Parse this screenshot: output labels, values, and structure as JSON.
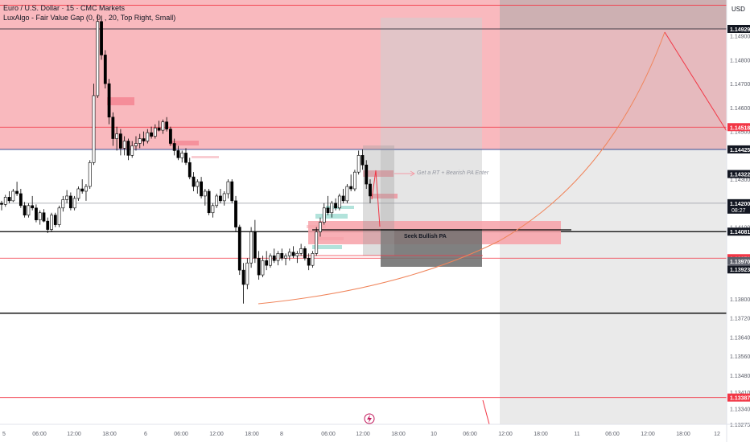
{
  "chart_data": {
    "type": "candlestick",
    "symbol_title": "Euro / U.S. Dollar · 15 · CMC Markets",
    "indicator_title": "LuxAlgo - Fair Value Gap (0, 0, , 20, Top Right, Small)",
    "currency": "USD",
    "ylim": [
      1.13275,
      1.1505
    ],
    "x_ticks": [
      "5",
      "06:00",
      "12:00",
      "18:00",
      "6",
      "06:00",
      "12:00",
      "18:00",
      "8",
      "06:00",
      "12:00",
      "18:00",
      "10",
      "06:00",
      "12:00",
      "18:00",
      "11",
      "06:00",
      "12:00",
      "18:00",
      "12"
    ],
    "y_ticks": [
      "1.14900",
      "1.14800",
      "1.14700",
      "1.14600",
      "1.14500",
      "1.14300",
      "1.14100",
      "1.13800",
      "1.13720",
      "1.13640",
      "1.13560",
      "1.13480",
      "1.13410",
      "1.13340",
      "1.13275"
    ],
    "price_labels": [
      {
        "value": "1.14929",
        "color": "#131722"
      },
      {
        "value": "1.14518",
        "color": "#f23645"
      },
      {
        "value": "1.14425",
        "color": "#131722"
      },
      {
        "value": "1.14322",
        "color": "#131722"
      },
      {
        "value": "1.14200",
        "color": "#131722",
        "sub": "08:27"
      },
      {
        "value": "1.14081",
        "color": "#131722"
      },
      {
        "value": "1.13970",
        "color": "#f23645"
      },
      {
        "value": "1.13970",
        "color": "#5d606b"
      },
      {
        "value": "1.13923",
        "color": "#131722"
      },
      {
        "value": "1.13387",
        "color": "#f23645"
      }
    ],
    "horizontal_levels": [
      {
        "value": 1.15028,
        "color": "#f23645"
      },
      {
        "value": 1.14929,
        "color": "#131722"
      },
      {
        "value": 1.14518,
        "color": "#f23645"
      },
      {
        "value": 1.14425,
        "color": "#1e3a8a"
      },
      {
        "value": 1.142,
        "color": "#9598a1"
      },
      {
        "value": 1.14081,
        "color": "#000000"
      },
      {
        "value": 1.1397,
        "color": "#f23645"
      },
      {
        "value": 1.1374,
        "color": "#000000"
      },
      {
        "value": 1.13387,
        "color": "#f23645"
      }
    ],
    "supply_zone": {
      "from": 1.14425,
      "to": 1.1505,
      "color": "#f7a1a8"
    },
    "annotations": [
      {
        "text": "Get a RT + Bearish PA Enter",
        "color": "#9598a1"
      },
      {
        "text": "Seek Bullish PA",
        "color": "#131722"
      }
    ],
    "candles": [
      [
        1.142,
        1.1421,
        1.1417,
        1.14195
      ],
      [
        1.14195,
        1.14235,
        1.14185,
        1.14225
      ],
      [
        1.14225,
        1.1425,
        1.142,
        1.1421
      ],
      [
        1.1421,
        1.1426,
        1.14205,
        1.1425
      ],
      [
        1.1425,
        1.1429,
        1.1423,
        1.1424
      ],
      [
        1.1424,
        1.1426,
        1.1418,
        1.1419
      ],
      [
        1.1419,
        1.14205,
        1.1414,
        1.1415
      ],
      [
        1.1415,
        1.142,
        1.1414,
        1.1419
      ],
      [
        1.1419,
        1.1423,
        1.1417,
        1.1418
      ],
      [
        1.1418,
        1.14195,
        1.1412,
        1.1413
      ],
      [
        1.1413,
        1.1417,
        1.1411,
        1.1416
      ],
      [
        1.1416,
        1.14175,
        1.1412,
        1.14125
      ],
      [
        1.14125,
        1.1414,
        1.14075,
        1.1409
      ],
      [
        1.1409,
        1.1416,
        1.1408,
        1.1415
      ],
      [
        1.1415,
        1.1416,
        1.141,
        1.1411
      ],
      [
        1.1411,
        1.1419,
        1.141,
        1.1418
      ],
      [
        1.1418,
        1.1423,
        1.14165,
        1.14215
      ],
      [
        1.14215,
        1.14255,
        1.142,
        1.1423
      ],
      [
        1.1423,
        1.14245,
        1.1417,
        1.1418
      ],
      [
        1.1418,
        1.1423,
        1.1417,
        1.1422
      ],
      [
        1.1422,
        1.1427,
        1.1421,
        1.1426
      ],
      [
        1.1426,
        1.143,
        1.1424,
        1.1425
      ],
      [
        1.1425,
        1.1428,
        1.1421,
        1.1427
      ],
      [
        1.1427,
        1.1438,
        1.1426,
        1.1437
      ],
      [
        1.1437,
        1.147,
        1.1436,
        1.1465
      ],
      [
        1.1465,
        1.1499,
        1.1464,
        1.1496
      ],
      [
        1.1496,
        1.14985,
        1.148,
        1.1482
      ],
      [
        1.1482,
        1.1484,
        1.1468,
        1.147
      ],
      [
        1.147,
        1.1472,
        1.1453,
        1.1456
      ],
      [
        1.1456,
        1.1458,
        1.1444,
        1.1447
      ],
      [
        1.1447,
        1.1452,
        1.1442,
        1.1449
      ],
      [
        1.1449,
        1.1451,
        1.144,
        1.1443
      ],
      [
        1.1443,
        1.1448,
        1.144,
        1.1446
      ],
      [
        1.1446,
        1.1447,
        1.1438,
        1.144
      ],
      [
        1.144,
        1.1446,
        1.1439,
        1.1444
      ],
      [
        1.1444,
        1.1448,
        1.1442,
        1.1445
      ],
      [
        1.1445,
        1.1449,
        1.1443,
        1.1447
      ],
      [
        1.1447,
        1.145,
        1.1444,
        1.1446
      ],
      [
        1.1446,
        1.1451,
        1.1445,
        1.14495
      ],
      [
        1.14495,
        1.1452,
        1.1447,
        1.1448
      ],
      [
        1.1448,
        1.1453,
        1.1447,
        1.14515
      ],
      [
        1.14515,
        1.14545,
        1.145,
        1.14505
      ],
      [
        1.14505,
        1.1455,
        1.1449,
        1.1454
      ],
      [
        1.1454,
        1.1456,
        1.145,
        1.1451
      ],
      [
        1.1451,
        1.1452,
        1.1444,
        1.1445
      ],
      [
        1.1445,
        1.1447,
        1.144,
        1.1442
      ],
      [
        1.1442,
        1.1444,
        1.1438,
        1.1439
      ],
      [
        1.1439,
        1.1442,
        1.1437,
        1.1441
      ],
      [
        1.1441,
        1.1443,
        1.1436,
        1.1437
      ],
      [
        1.1437,
        1.1439,
        1.143,
        1.1431
      ],
      [
        1.1431,
        1.1433,
        1.1425,
        1.1427
      ],
      [
        1.1427,
        1.143,
        1.1424,
        1.1429
      ],
      [
        1.1429,
        1.1431,
        1.1422,
        1.1423
      ],
      [
        1.1423,
        1.1426,
        1.1419,
        1.1425
      ],
      [
        1.1425,
        1.1426,
        1.1415,
        1.1416
      ],
      [
        1.1416,
        1.142,
        1.1414,
        1.1419
      ],
      [
        1.1419,
        1.1424,
        1.1418,
        1.1423
      ],
      [
        1.1423,
        1.1426,
        1.142,
        1.1421
      ],
      [
        1.1421,
        1.1425,
        1.1419,
        1.1424
      ],
      [
        1.1424,
        1.143,
        1.1422,
        1.1429
      ],
      [
        1.1429,
        1.143,
        1.142,
        1.1421
      ],
      [
        1.1421,
        1.1423,
        1.1408,
        1.141
      ],
      [
        1.141,
        1.1411,
        1.139,
        1.1392
      ],
      [
        1.1392,
        1.1395,
        1.1378,
        1.1386
      ],
      [
        1.1386,
        1.1397,
        1.1384,
        1.1395
      ],
      [
        1.1395,
        1.141,
        1.1393,
        1.1408
      ],
      [
        1.1408,
        1.1413,
        1.1395,
        1.1397
      ],
      [
        1.1397,
        1.14,
        1.1388,
        1.139
      ],
      [
        1.139,
        1.1398,
        1.1389,
        1.1396
      ],
      [
        1.1396,
        1.14,
        1.1392,
        1.1394
      ],
      [
        1.1394,
        1.1399,
        1.1393,
        1.1398
      ],
      [
        1.1398,
        1.1401,
        1.1395,
        1.1396
      ],
      [
        1.1396,
        1.14,
        1.1394,
        1.1399
      ],
      [
        1.1399,
        1.1401,
        1.1396,
        1.1397
      ],
      [
        1.1397,
        1.1399,
        1.1394,
        1.1398
      ],
      [
        1.1398,
        1.1401,
        1.1396,
        1.13995
      ],
      [
        1.13995,
        1.1402,
        1.1397,
        1.1398
      ],
      [
        1.1398,
        1.14,
        1.1395,
        1.1399
      ],
      [
        1.1399,
        1.1403,
        1.1398,
        1.1401
      ],
      [
        1.1401,
        1.1402,
        1.1396,
        1.1397
      ],
      [
        1.1397,
        1.1399,
        1.1392,
        1.1394
      ],
      [
        1.1394,
        1.14,
        1.1393,
        1.1399
      ],
      [
        1.1399,
        1.141,
        1.1398,
        1.1408
      ],
      [
        1.1408,
        1.1414,
        1.1406,
        1.1412
      ],
      [
        1.1412,
        1.142,
        1.1411,
        1.1418
      ],
      [
        1.1418,
        1.1423,
        1.1415,
        1.1416
      ],
      [
        1.1416,
        1.1421,
        1.1414,
        1.142
      ],
      [
        1.142,
        1.1422,
        1.1417,
        1.1418
      ],
      [
        1.1418,
        1.1424,
        1.1417,
        1.1423
      ],
      [
        1.1423,
        1.1426,
        1.142,
        1.1421
      ],
      [
        1.1421,
        1.1428,
        1.142,
        1.1427
      ],
      [
        1.1427,
        1.1432,
        1.1425,
        1.1426
      ],
      [
        1.1426,
        1.1434,
        1.1425,
        1.1433
      ],
      [
        1.1433,
        1.1442,
        1.1432,
        1.144
      ],
      [
        1.144,
        1.14425,
        1.1434,
        1.1436
      ],
      [
        1.1436,
        1.1438,
        1.1426,
        1.1428
      ],
      [
        1.1428,
        1.143,
        1.142,
        1.1423
      ]
    ]
  }
}
